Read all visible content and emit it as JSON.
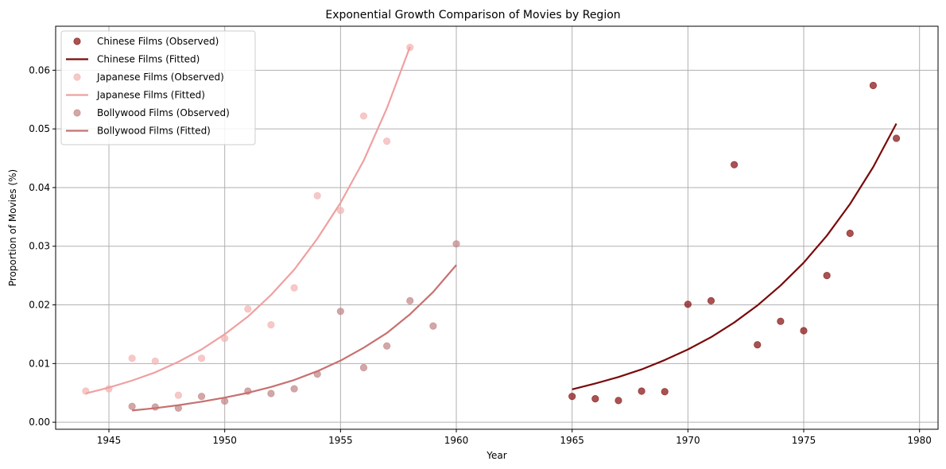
{
  "chart_data": {
    "type": "scatter",
    "title": "Exponential Growth Comparison of Movies by Region",
    "xlabel": "Year",
    "ylabel": "Proportion of Movies (%)",
    "xlim": [
      1942.7,
      1980.8
    ],
    "ylim": [
      -0.0012,
      0.0675
    ],
    "x_ticks": [
      1945,
      1950,
      1955,
      1960,
      1965,
      1970,
      1975,
      1980
    ],
    "y_ticks": [
      0.0,
      0.01,
      0.02,
      0.03,
      0.04,
      0.05,
      0.06
    ],
    "y_tick_labels": [
      "0.00",
      "0.01",
      "0.02",
      "0.03",
      "0.04",
      "0.05",
      "0.06"
    ],
    "grid": true,
    "legend_position": "top-left",
    "series": [
      {
        "name": "Chinese Films (Observed)",
        "kind": "scatter",
        "color": "#8b1a1a",
        "opacity": 0.75,
        "x": [
          1965,
          1966,
          1967,
          1968,
          1969,
          1970,
          1971,
          1972,
          1973,
          1974,
          1975,
          1976,
          1977,
          1978,
          1979
        ],
        "y": [
          0.0044,
          0.004,
          0.0037,
          0.0053,
          0.0052,
          0.0201,
          0.0207,
          0.0439,
          0.0132,
          0.0172,
          0.0156,
          0.025,
          0.0322,
          0.0574,
          0.0484
        ]
      },
      {
        "name": "Chinese Films (Fitted)",
        "kind": "line",
        "color": "#7a0a0a",
        "x": [
          1965,
          1966,
          1967,
          1968,
          1969,
          1970,
          1971,
          1972,
          1973,
          1974,
          1975,
          1976,
          1977,
          1978,
          1979
        ],
        "y": [
          0.0056,
          0.0066,
          0.0077,
          0.009,
          0.0106,
          0.0124,
          0.0145,
          0.017,
          0.0199,
          0.0233,
          0.0272,
          0.0318,
          0.0372,
          0.0435,
          0.0509
        ]
      },
      {
        "name": "Japanese Films (Observed)",
        "kind": "scatter",
        "color": "#f4b6b6",
        "opacity": 0.75,
        "x": [
          1944,
          1945,
          1946,
          1947,
          1948,
          1949,
          1950,
          1951,
          1952,
          1953,
          1954,
          1955,
          1956,
          1957,
          1958
        ],
        "y": [
          0.0053,
          0.0057,
          0.0109,
          0.0104,
          0.0046,
          0.0109,
          0.0143,
          0.0193,
          0.0166,
          0.0229,
          0.0386,
          0.0361,
          0.0522,
          0.0479,
          0.0639
        ]
      },
      {
        "name": "Japanese Films (Fitted)",
        "kind": "line",
        "color": "#f0a0a0",
        "x": [
          1944,
          1945,
          1946,
          1947,
          1948,
          1949,
          1950,
          1951,
          1952,
          1953,
          1954,
          1955,
          1956,
          1957,
          1958
        ],
        "y": [
          0.0049,
          0.0059,
          0.0071,
          0.0085,
          0.0103,
          0.0124,
          0.015,
          0.018,
          0.0217,
          0.026,
          0.0313,
          0.0374,
          0.0446,
          0.0535,
          0.064
        ]
      },
      {
        "name": "Bollywood Films (Observed)",
        "kind": "scatter",
        "color": "#c48a8a",
        "opacity": 0.75,
        "x": [
          1946,
          1947,
          1948,
          1949,
          1950,
          1951,
          1952,
          1953,
          1954,
          1955,
          1956,
          1957,
          1958,
          1959,
          1960
        ],
        "y": [
          0.0027,
          0.0026,
          0.0024,
          0.0044,
          0.0036,
          0.0053,
          0.0049,
          0.0057,
          0.0082,
          0.0189,
          0.0093,
          0.013,
          0.0207,
          0.0164,
          0.0304
        ]
      },
      {
        "name": "Bollywood Films (Fitted)",
        "kind": "line",
        "color": "#c87070",
        "x": [
          1946,
          1947,
          1948,
          1949,
          1950,
          1951,
          1952,
          1953,
          1954,
          1955,
          1956,
          1957,
          1958,
          1959,
          1960
        ],
        "y": [
          0.002,
          0.0024,
          0.0029,
          0.0035,
          0.0042,
          0.005,
          0.006,
          0.0072,
          0.0087,
          0.0105,
          0.0127,
          0.0152,
          0.0184,
          0.0222,
          0.0268
        ]
      }
    ]
  }
}
